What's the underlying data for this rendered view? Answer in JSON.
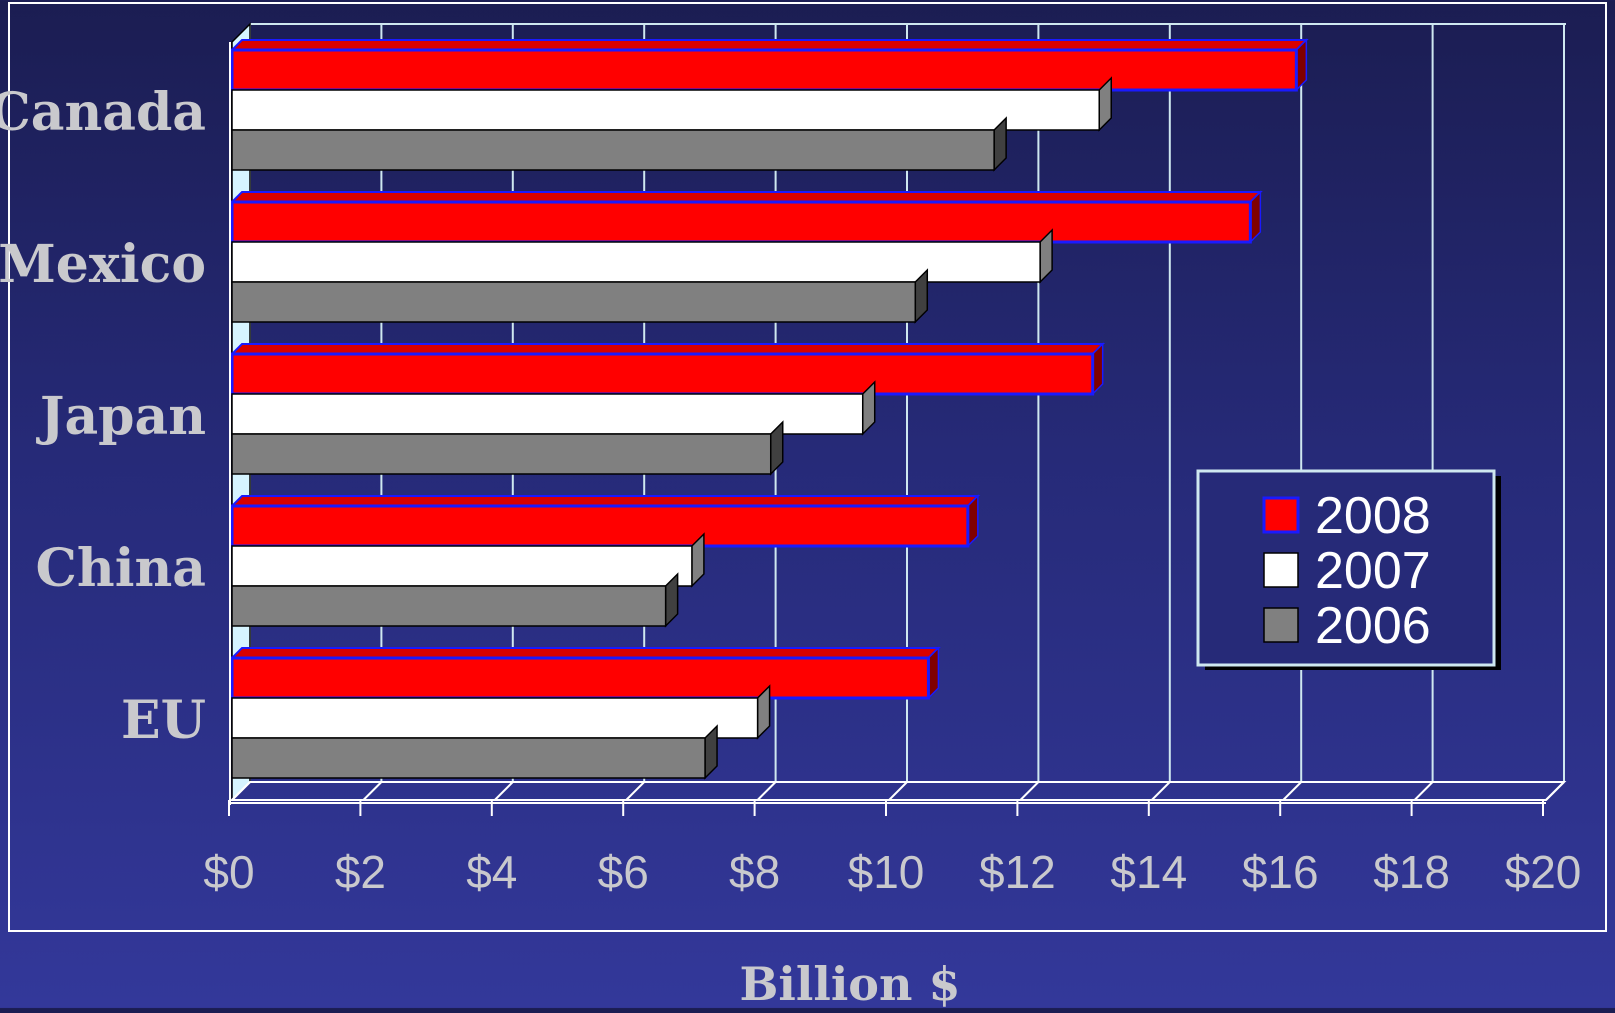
{
  "chart_data": {
    "type": "bar",
    "orientation": "horizontal",
    "categories": [
      "Canada",
      "Mexico",
      "Japan",
      "China",
      "EU"
    ],
    "series": [
      {
        "name": "2008",
        "values": [
          16.2,
          15.5,
          13.1,
          11.2,
          10.6
        ],
        "color": "#ff0000",
        "edge": "#1a1aff"
      },
      {
        "name": "2007",
        "values": [
          13.2,
          12.3,
          9.6,
          7.0,
          8.0
        ],
        "color": "#ffffff",
        "edge": "#000000"
      },
      {
        "name": "2006",
        "values": [
          11.6,
          10.4,
          8.2,
          6.6,
          7.2
        ],
        "color": "#808080",
        "edge": "#000000"
      }
    ],
    "ticks": [
      0,
      2,
      4,
      6,
      8,
      10,
      12,
      14,
      16,
      18,
      20
    ],
    "tick_labels": [
      "$0",
      "$2",
      "$4",
      "$6",
      "$8",
      "$10",
      "$12",
      "$14",
      "$16",
      "$18",
      "$20"
    ],
    "xlim": [
      0,
      20
    ],
    "xlabel": "Billion $",
    "ylabel": "",
    "title": "",
    "grid": true,
    "legend_position": "right",
    "style": "3d",
    "colors": {
      "background": "#262a78",
      "text": "#c9c9cd",
      "gridline": "#cfe8f0",
      "legend_border": "#cfe8f0"
    }
  }
}
